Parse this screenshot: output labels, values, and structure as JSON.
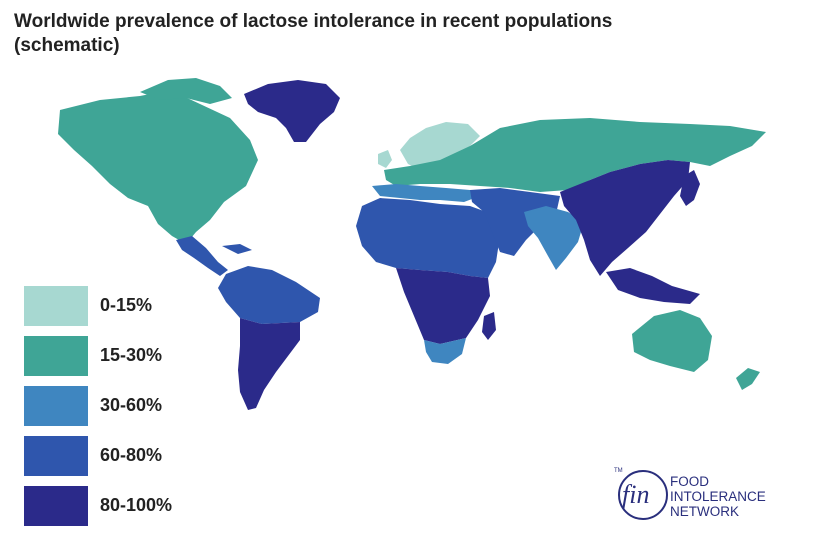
{
  "title": {
    "line1": "Worldwide prevalence of lactose intolerance in recent populations",
    "line2": "(schematic)"
  },
  "colors": {
    "c0_15": "#a7d8d1",
    "c15_30": "#3fa596",
    "c30_60": "#3f86c0",
    "c60_80": "#2f56ad",
    "c80_100": "#2b2a8a"
  },
  "legend": [
    {
      "label": "0-15%",
      "color": "#a7d8d1"
    },
    {
      "label": "15-30%",
      "color": "#3fa596"
    },
    {
      "label": "30-60%",
      "color": "#3f86c0"
    },
    {
      "label": "60-80%",
      "color": "#2f56ad"
    },
    {
      "label": "80-100%",
      "color": "#2b2a8a"
    }
  ],
  "map": {
    "regions": [
      {
        "name": "north-america",
        "band": "15-30%"
      },
      {
        "name": "greenland",
        "band": "80-100%"
      },
      {
        "name": "central-america",
        "band": "60-80%"
      },
      {
        "name": "south-america-north",
        "band": "60-80%"
      },
      {
        "name": "south-america-south",
        "band": "80-100%"
      },
      {
        "name": "scandinavia",
        "band": "0-15%"
      },
      {
        "name": "europe-russia",
        "band": "15-30%"
      },
      {
        "name": "southern-europe",
        "band": "30-60%"
      },
      {
        "name": "north-africa",
        "band": "60-80%"
      },
      {
        "name": "sub-saharan-africa",
        "band": "80-100%"
      },
      {
        "name": "south-africa",
        "band": "30-60%"
      },
      {
        "name": "middle-east",
        "band": "60-80%"
      },
      {
        "name": "india",
        "band": "30-60%"
      },
      {
        "name": "east-asia",
        "band": "80-100%"
      },
      {
        "name": "australia",
        "band": "15-30%"
      },
      {
        "name": "new-zealand",
        "band": "15-30%"
      }
    ]
  },
  "logo": {
    "tm": "TM",
    "mark": "fin",
    "line1": "FOOD",
    "line2": "INTOLERANCE",
    "line3": "NETWORK"
  }
}
